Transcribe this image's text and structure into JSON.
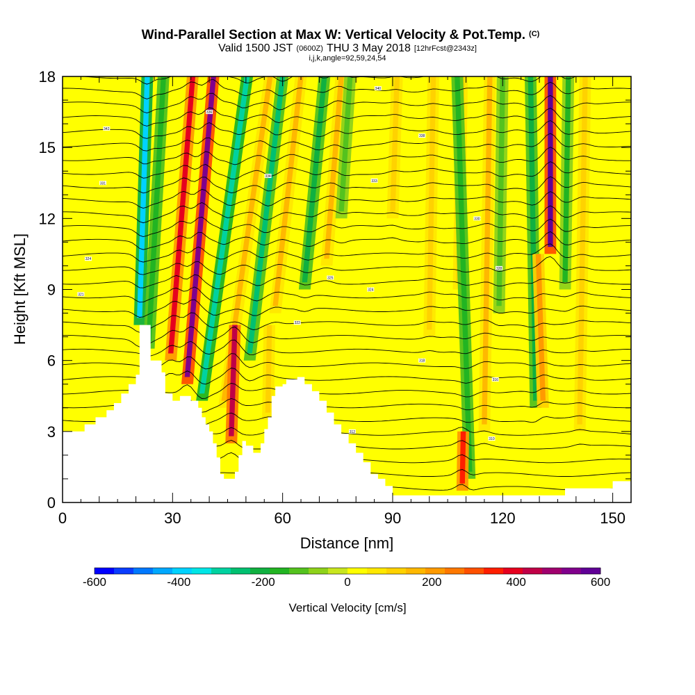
{
  "chart_data": {
    "type": "heatmap",
    "title": "Wind-Parallel Section at Max W: Vertical Velocity & Pot.Temp.",
    "title_mark": "(C)",
    "subtitle": {
      "valid": "Valid 1500 JST",
      "utc": "(0600Z)",
      "date": "THU 3 May 2018",
      "forecast": "[12hrFcst@2343z]"
    },
    "info_line": "i,j,k,angle=92,59,24,54",
    "xlabel": "Distance [nm]",
    "ylabel": "Height [Kft MSL]",
    "xlim": [
      0,
      155
    ],
    "ylim": [
      0,
      18
    ],
    "x_ticks": [
      0,
      30,
      60,
      90,
      120,
      150
    ],
    "x_tick_labels": [
      "0",
      "30",
      "60",
      "90",
      "120",
      "150"
    ],
    "y_ticks": [
      0,
      3,
      6,
      9,
      12,
      15,
      18
    ],
    "y_tick_labels": [
      "0",
      "3",
      "6",
      "9",
      "12",
      "15",
      "18"
    ],
    "colorbar": {
      "label": "Vertical Velocity [cm/s]",
      "range": [
        -600,
        600
      ],
      "tick_values": [
        -600,
        -400,
        -200,
        0,
        200,
        400,
        600
      ],
      "tick_labels": [
        "-600",
        "-400",
        "-200",
        "0",
        "200",
        "400",
        "600"
      ],
      "colors": [
        "#0000ff",
        "#0a3cff",
        "#0078ff",
        "#00a8ff",
        "#00d2ff",
        "#00e6e6",
        "#00d2a0",
        "#00c070",
        "#10b040",
        "#22b422",
        "#54c21e",
        "#8ed21a",
        "#c8e61e",
        "#ffff00",
        "#ffe800",
        "#ffd200",
        "#ffb800",
        "#ff9a00",
        "#ff7800",
        "#ff5000",
        "#ff1e00",
        "#e6001e",
        "#c00046",
        "#a0006e",
        "#80008c",
        "#600096"
      ]
    },
    "background_w_cm_s": 30,
    "w_bands": [
      {
        "x": 21,
        "w_cm_s": -400,
        "y_range": [
          7.5,
          18
        ],
        "tilt": 0.2
      },
      {
        "x": 23.5,
        "w_cm_s": -180,
        "y_range": [
          6.5,
          18
        ],
        "tilt": 0.35
      },
      {
        "x": 29.5,
        "w_cm_s": 380,
        "y_range": [
          6.0,
          18
        ],
        "tilt": 0.5
      },
      {
        "x": 34,
        "w_cm_s": 520,
        "y_range": [
          5.0,
          18
        ],
        "tilt": 0.55
      },
      {
        "x": 38,
        "w_cm_s": -280,
        "y_range": [
          4.3,
          18
        ],
        "tilt": 0.9
      },
      {
        "x": 44,
        "w_cm_s": 150,
        "y_range": [
          4.0,
          18
        ],
        "tilt": 0.9
      },
      {
        "x": 51,
        "w_cm_s": -250,
        "y_range": [
          6.0,
          18
        ],
        "tilt": 0.75
      },
      {
        "x": 46,
        "w_cm_s": 420,
        "y_range": [
          2.5,
          7.5
        ],
        "tilt": 0.2
      },
      {
        "x": 58,
        "w_cm_s": 160,
        "y_range": [
          8.0,
          18
        ],
        "tilt": 0.7
      },
      {
        "x": 66,
        "w_cm_s": -200,
        "y_range": [
          9.0,
          18
        ],
        "tilt": 0.6
      },
      {
        "x": 72,
        "w_cm_s": 150,
        "y_range": [
          10.0,
          18
        ],
        "tilt": 0.5
      },
      {
        "x": 76,
        "w_cm_s": -130,
        "y_range": [
          12.0,
          18
        ],
        "tilt": 0.4
      },
      {
        "x": 56,
        "w_cm_s": 130,
        "y_range": [
          3.5,
          7.5
        ],
        "tilt": 0.1
      },
      {
        "x": 90,
        "w_cm_s": 130,
        "y_range": [
          12.0,
          18
        ],
        "tilt": 0.2
      },
      {
        "x": 100,
        "w_cm_s": 130,
        "y_range": [
          7.0,
          18
        ],
        "tilt": 0.1
      },
      {
        "x": 108,
        "w_cm_s": 110,
        "y_range": [
          9.0,
          18
        ],
        "tilt": 0.1
      },
      {
        "x": 111,
        "w_cm_s": -170,
        "y_range": [
          1.0,
          18
        ],
        "tilt": -0.2
      },
      {
        "x": 109,
        "w_cm_s": 360,
        "y_range": [
          0.5,
          3.0
        ],
        "tilt": 0.1
      },
      {
        "x": 115,
        "w_cm_s": 140,
        "y_range": [
          3.0,
          18
        ],
        "tilt": 0.1
      },
      {
        "x": 119,
        "w_cm_s": -130,
        "y_range": [
          8.0,
          18
        ],
        "tilt": 0.1
      },
      {
        "x": 129,
        "w_cm_s": -190,
        "y_range": [
          4.0,
          18
        ],
        "tilt": -0.1
      },
      {
        "x": 133,
        "w_cm_s": 560,
        "y_range": [
          10.5,
          18
        ],
        "tilt": 0.0
      },
      {
        "x": 131,
        "w_cm_s": 200,
        "y_range": [
          4.0,
          10.5
        ],
        "tilt": -0.2
      },
      {
        "x": 137,
        "w_cm_s": -140,
        "y_range": [
          9.0,
          18
        ],
        "tilt": 0.1
      },
      {
        "x": 141,
        "w_cm_s": 120,
        "y_range": [
          3.0,
          18
        ],
        "tilt": 0.1
      }
    ],
    "terrain": [
      [
        0,
        3.0
      ],
      [
        3,
        3.0
      ],
      [
        6,
        3.3
      ],
      [
        9,
        3.6
      ],
      [
        12,
        3.9
      ],
      [
        14,
        4.2
      ],
      [
        16,
        4.6
      ],
      [
        18,
        5.0
      ],
      [
        20,
        5.4
      ],
      [
        21,
        7.5
      ],
      [
        23,
        7.5
      ],
      [
        24,
        6.0
      ],
      [
        26,
        6.0
      ],
      [
        27,
        5.5
      ],
      [
        28,
        4.6
      ],
      [
        30,
        4.3
      ],
      [
        32,
        4.5
      ],
      [
        35,
        4.3
      ],
      [
        37,
        4.0
      ],
      [
        38,
        3.6
      ],
      [
        39,
        3.3
      ],
      [
        40,
        3.0
      ],
      [
        41,
        2.5
      ],
      [
        42,
        1.9
      ],
      [
        43,
        1.2
      ],
      [
        44,
        1.0
      ],
      [
        46,
        1.0
      ],
      [
        47,
        1.3
      ],
      [
        48,
        2.0
      ],
      [
        49,
        2.6
      ],
      [
        50,
        2.4
      ],
      [
        52,
        2.1
      ],
      [
        53,
        2.1
      ],
      [
        54,
        2.5
      ],
      [
        55,
        3.1
      ],
      [
        56,
        3.6
      ],
      [
        57,
        4.5
      ],
      [
        58,
        4.9
      ],
      [
        60,
        5.0
      ],
      [
        61,
        5.2
      ],
      [
        64,
        5.3
      ],
      [
        66,
        5.0
      ],
      [
        68,
        4.7
      ],
      [
        70,
        4.3
      ],
      [
        72,
        3.8
      ],
      [
        74,
        3.3
      ],
      [
        76,
        2.9
      ],
      [
        78,
        2.5
      ],
      [
        80,
        2.1
      ],
      [
        82,
        1.7
      ],
      [
        84,
        1.2
      ],
      [
        86,
        1.0
      ],
      [
        88,
        0.7
      ],
      [
        90,
        0.3
      ],
      [
        135,
        0.3
      ],
      [
        137,
        0.6
      ],
      [
        149,
        0.6
      ],
      [
        150,
        0.9
      ],
      [
        155,
        0.9
      ]
    ],
    "theta_isentropes": {
      "count": 34,
      "y0": 0.6,
      "dy": 0.58,
      "labels": [
        {
          "x": 12,
          "y": 15.8,
          "text": "342"
        },
        {
          "x": 40,
          "y": 16.5,
          "text": "336"
        },
        {
          "x": 86,
          "y": 17.5,
          "text": "340"
        },
        {
          "x": 98,
          "y": 15.5,
          "text": "338"
        },
        {
          "x": 56,
          "y": 13.8,
          "text": "334"
        },
        {
          "x": 85,
          "y": 13.6,
          "text": "333"
        },
        {
          "x": 113,
          "y": 12.0,
          "text": "330"
        },
        {
          "x": 119,
          "y": 9.9,
          "text": "328"
        },
        {
          "x": 73,
          "y": 9.5,
          "text": "325"
        },
        {
          "x": 84,
          "y": 9.0,
          "text": "324"
        },
        {
          "x": 64,
          "y": 7.6,
          "text": "322"
        },
        {
          "x": 98,
          "y": 6.0,
          "text": "318"
        },
        {
          "x": 118,
          "y": 5.2,
          "text": "316"
        },
        {
          "x": 79,
          "y": 3.0,
          "text": "312"
        },
        {
          "x": 117,
          "y": 2.7,
          "text": "310"
        },
        {
          "x": 5,
          "y": 8.8,
          "text": "321"
        },
        {
          "x": 7,
          "y": 10.3,
          "text": "324"
        },
        {
          "x": 11,
          "y": 13.5,
          "text": "331"
        }
      ]
    }
  }
}
